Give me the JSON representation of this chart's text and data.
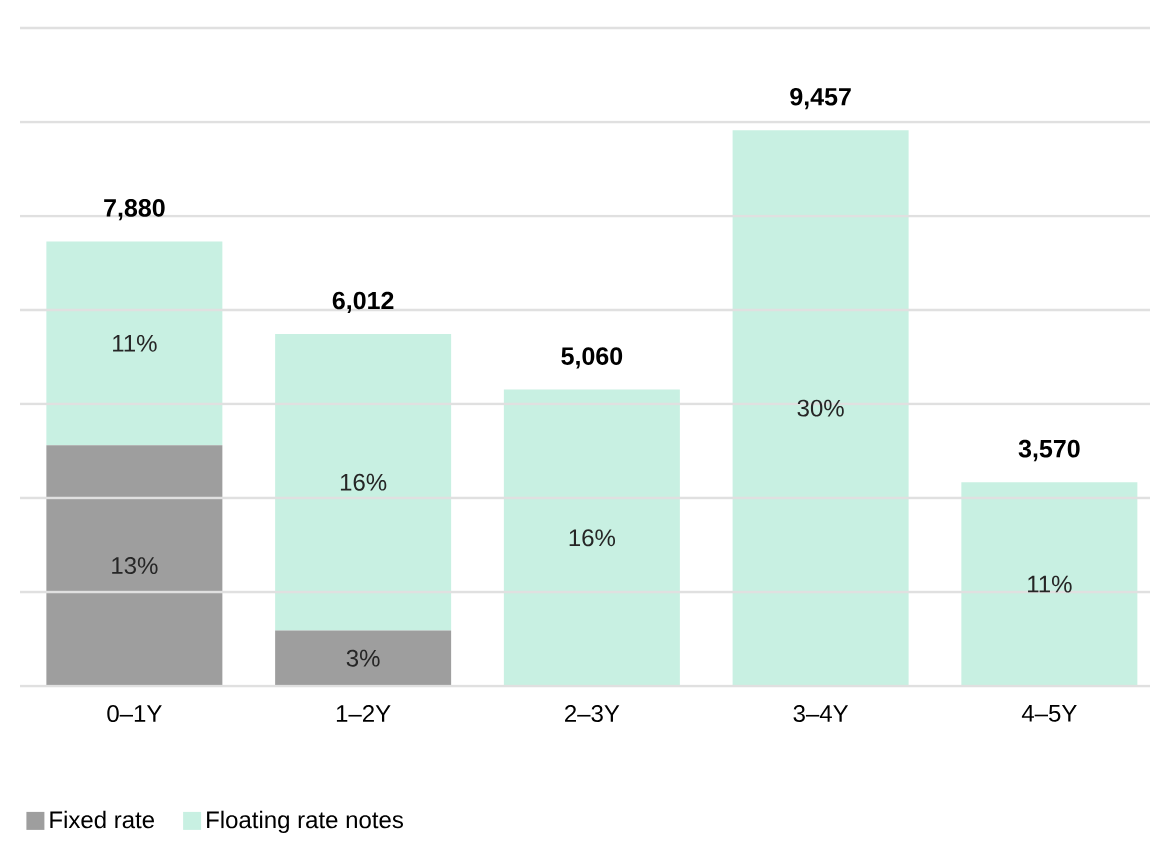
{
  "chart_data": {
    "type": "bar",
    "stacked": true,
    "categories": [
      "0–1Y",
      "1–2Y",
      "2–3Y",
      "3–4Y",
      "4–5Y"
    ],
    "series": [
      {
        "name": "Fixed rate",
        "color": "#9e9e9e",
        "values": [
          13,
          3,
          null,
          null,
          null
        ],
        "value_labels": [
          "13%",
          "3%",
          null,
          null,
          null
        ]
      },
      {
        "name": "Floating rate notes",
        "color": "#c8f0e2",
        "values": [
          11,
          16,
          16,
          30,
          11
        ],
        "value_labels": [
          "11%",
          "16%",
          "16%",
          "30%",
          "11%"
        ]
      }
    ],
    "annotations": [
      {
        "text": "7,880",
        "x": "0–1Y",
        "y": 24
      },
      {
        "text": "6,012",
        "x": "1–2Y",
        "y": 19
      },
      {
        "text": "5,060",
        "x": "2–3Y",
        "y": 16
      },
      {
        "text": "9,457",
        "x": "3–4Y",
        "y": 30
      },
      {
        "text": "3,570",
        "x": "4–5Y",
        "y": 11
      }
    ],
    "tick_labels": "x",
    "grid": "y",
    "legend": "bottom left"
  }
}
